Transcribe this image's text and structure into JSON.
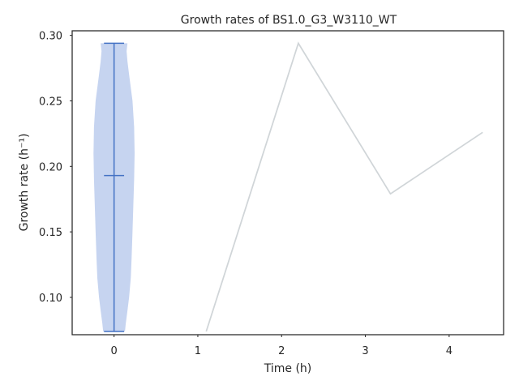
{
  "chart_data": {
    "type": "line",
    "title": "Growth rates of BS1.0_G3_W3110_WT",
    "xlabel": "Time (h)",
    "ylabel": "Growth rate (h⁻¹)",
    "xlim": [
      -0.5,
      4.65
    ],
    "ylim": [
      0.0715,
      0.3035
    ],
    "x_ticks": [
      0,
      1,
      2,
      3,
      4
    ],
    "y_ticks": [
      0.1,
      0.15,
      0.2,
      0.25,
      0.3
    ],
    "y_tick_labels": [
      "0.10",
      "0.15",
      "0.20",
      "0.25",
      "0.30"
    ],
    "grid": false,
    "series": [
      {
        "x": [
          1.1,
          2.2,
          3.3,
          4.4
        ],
        "y": [
          0.074,
          0.294,
          0.179,
          0.226
        ],
        "color": "#d0d5d8"
      }
    ],
    "violin": {
      "position": 0,
      "min": 0.074,
      "max": 0.294,
      "mean": 0.193,
      "fill_color": "#c6d4f0",
      "line_color": "#4472c4",
      "profile": [
        [
          0.074,
          0.13
        ],
        [
          0.08,
          0.14
        ],
        [
          0.09,
          0.16
        ],
        [
          0.1,
          0.18
        ],
        [
          0.115,
          0.2
        ],
        [
          0.13,
          0.21
        ],
        [
          0.15,
          0.22
        ],
        [
          0.17,
          0.23
        ],
        [
          0.19,
          0.24
        ],
        [
          0.21,
          0.245
        ],
        [
          0.23,
          0.24
        ],
        [
          0.25,
          0.22
        ],
        [
          0.27,
          0.18
        ],
        [
          0.28,
          0.16
        ],
        [
          0.288,
          0.15
        ],
        [
          0.294,
          0.16
        ]
      ]
    }
  }
}
